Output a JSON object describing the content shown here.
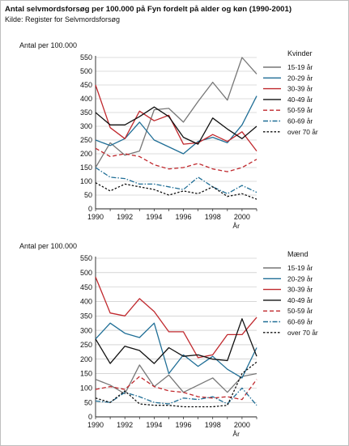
{
  "header": {
    "title": "Antal selvmordsforsøg per 100.000 på Fyn fordelt på alder og køn (1990-2001)",
    "source": "Kilde: Register for Selvmordsforsøg"
  },
  "series_styles": [
    {
      "color": "#777777",
      "dash": "solid"
    },
    {
      "color": "#1f6e96",
      "dash": "solid"
    },
    {
      "color": "#c0282d",
      "dash": "solid"
    },
    {
      "color": "#111111",
      "dash": "solid"
    },
    {
      "color": "#c0282d",
      "dash": "dashed"
    },
    {
      "color": "#1f6e96",
      "dash": "dashdot"
    },
    {
      "color": "#111111",
      "dash": "dotted"
    }
  ],
  "chart_data": [
    {
      "type": "line",
      "ylabel": "Antal per 100.000",
      "xlabel": "År",
      "legend_title": "Kvinder",
      "legend_position": "right",
      "xlim": [
        1990,
        2001
      ],
      "ylim": [
        0,
        550
      ],
      "x_ticks": [
        1990,
        1992,
        1994,
        1996,
        1998,
        2000
      ],
      "y_ticks": [
        0,
        50,
        100,
        150,
        200,
        250,
        300,
        350,
        400,
        450,
        500,
        550
      ],
      "x": [
        1990,
        1991,
        1992,
        1993,
        1994,
        1995,
        1996,
        1997,
        1998,
        1999,
        2000,
        2001
      ],
      "series": [
        {
          "name": "15-19 år",
          "values": [
            150,
            240,
            195,
            210,
            360,
            365,
            315,
            390,
            460,
            395,
            550,
            490
          ]
        },
        {
          "name": "20-29 år",
          "values": [
            250,
            230,
            255,
            315,
            250,
            225,
            200,
            245,
            260,
            240,
            305,
            410
          ]
        },
        {
          "name": "30-39 år",
          "values": [
            450,
            295,
            255,
            355,
            320,
            340,
            235,
            240,
            270,
            245,
            280,
            210
          ]
        },
        {
          "name": "40-49 år",
          "values": [
            350,
            305,
            305,
            335,
            370,
            335,
            260,
            235,
            330,
            290,
            255,
            300
          ]
        },
        {
          "name": "50-59 år",
          "values": [
            220,
            190,
            200,
            190,
            160,
            145,
            150,
            165,
            145,
            135,
            150,
            180
          ]
        },
        {
          "name": "60-69 år",
          "values": [
            150,
            115,
            110,
            90,
            90,
            80,
            70,
            115,
            80,
            55,
            85,
            60
          ]
        },
        {
          "name": "over 70 år",
          "values": [
            95,
            65,
            90,
            80,
            70,
            50,
            65,
            55,
            80,
            45,
            55,
            35
          ]
        }
      ]
    },
    {
      "type": "line",
      "ylabel": "Antal per 100.000",
      "xlabel": "År",
      "legend_title": "Mænd",
      "legend_position": "right",
      "xlim": [
        1990,
        2001
      ],
      "ylim": [
        0,
        550
      ],
      "x_ticks": [
        1990,
        1992,
        1994,
        1996,
        1998,
        2000
      ],
      "y_ticks": [
        0,
        50,
        100,
        150,
        200,
        250,
        300,
        350,
        400,
        450,
        500,
        550
      ],
      "x": [
        1990,
        1991,
        1992,
        1993,
        1994,
        1995,
        1996,
        1997,
        1998,
        1999,
        2000,
        2001
      ],
      "series": [
        {
          "name": "15-19 år",
          "values": [
            130,
            110,
            80,
            180,
            105,
            145,
            85,
            110,
            135,
            85,
            140,
            150
          ]
        },
        {
          "name": "20-29 år",
          "values": [
            270,
            325,
            290,
            275,
            325,
            150,
            215,
            175,
            210,
            165,
            135,
            240
          ]
        },
        {
          "name": "30-39 år",
          "values": [
            485,
            360,
            350,
            410,
            365,
            295,
            295,
            205,
            215,
            285,
            285,
            345
          ]
        },
        {
          "name": "40-49 år",
          "values": [
            270,
            185,
            245,
            230,
            185,
            240,
            210,
            215,
            200,
            195,
            340,
            210
          ]
        },
        {
          "name": "50-59 år",
          "values": [
            95,
            105,
            95,
            140,
            105,
            90,
            85,
            70,
            65,
            70,
            60,
            130
          ]
        },
        {
          "name": "60-69 år",
          "values": [
            55,
            50,
            85,
            70,
            50,
            45,
            65,
            60,
            70,
            45,
            100,
            40
          ]
        },
        {
          "name": "over 70 år",
          "values": [
            65,
            50,
            90,
            45,
            40,
            40,
            35,
            35,
            35,
            40,
            150,
            190
          ]
        }
      ]
    }
  ]
}
